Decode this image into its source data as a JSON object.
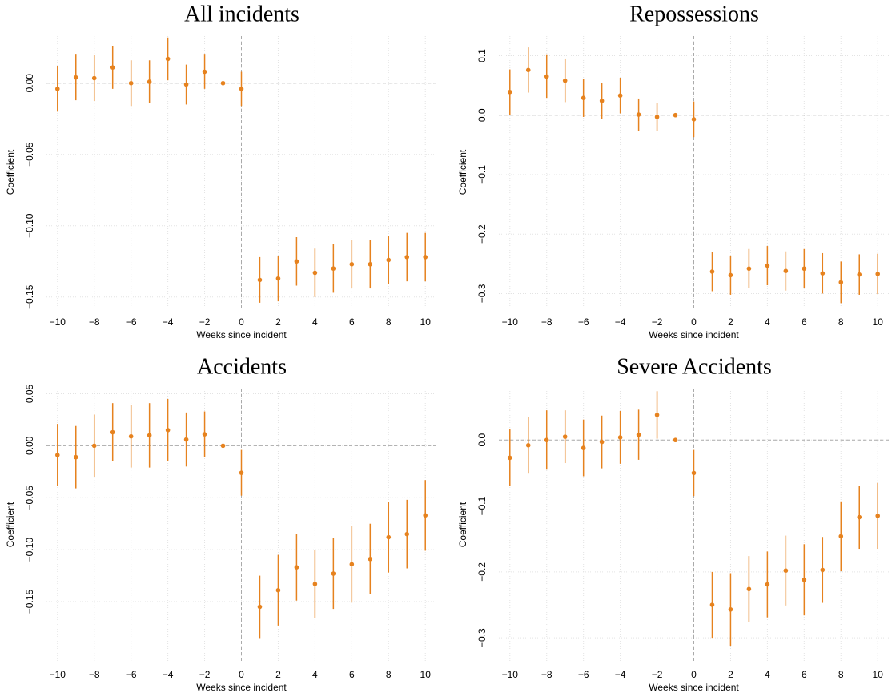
{
  "chart_data": [
    {
      "type": "errorbar",
      "title": "All incidents",
      "xlabel": "Weeks since incident",
      "ylabel": "Coefficient",
      "color": "#e6821e",
      "grid": true,
      "hline": 0,
      "vline": 0,
      "x": [
        -10,
        -9,
        -8,
        -7,
        -6,
        -5,
        -4,
        -3,
        -2,
        -1,
        0,
        1,
        2,
        3,
        4,
        5,
        6,
        7,
        8,
        9,
        10
      ],
      "values": [
        -0.004,
        0.004,
        0.0035,
        0.011,
        0.0,
        0.001,
        0.017,
        -0.001,
        0.008,
        0.0,
        -0.004,
        -0.138,
        -0.137,
        -0.125,
        -0.133,
        -0.13,
        -0.127,
        -0.127,
        -0.124,
        -0.122,
        -0.122
      ],
      "errors": [
        0.016,
        0.016,
        0.016,
        0.015,
        0.016,
        0.015,
        0.015,
        0.014,
        0.012,
        0.001,
        0.012,
        0.016,
        0.016,
        0.017,
        0.017,
        0.017,
        0.017,
        0.017,
        0.017,
        0.017,
        0.017
      ],
      "xlim": [
        -10.6,
        10.6
      ],
      "ylim": [
        -0.158,
        0.033
      ],
      "xticks": [
        {
          "value": -10,
          "label": "−10"
        },
        {
          "value": -8,
          "label": "−8"
        },
        {
          "value": -6,
          "label": "−6"
        },
        {
          "value": -4,
          "label": "−4"
        },
        {
          "value": -2,
          "label": "−2"
        },
        0,
        2,
        4,
        6,
        8,
        10
      ],
      "yticks": [
        {
          "value": 0,
          "label": "0.00"
        },
        {
          "value": -0.05,
          "label": "−0.05"
        },
        {
          "value": -0.1,
          "label": "−0.10"
        },
        {
          "value": -0.15,
          "label": "−0.15"
        }
      ]
    },
    {
      "type": "errorbar",
      "title": "Repossessions",
      "xlabel": "Weeks since incident",
      "ylabel": "Coefficient",
      "color": "#e6821e",
      "grid": true,
      "hline": 0,
      "vline": 0,
      "x": [
        -10,
        -9,
        -8,
        -7,
        -6,
        -5,
        -4,
        -3,
        -2,
        -1,
        0,
        1,
        2,
        3,
        4,
        5,
        6,
        7,
        8,
        9,
        10
      ],
      "values": [
        0.039,
        0.076,
        0.065,
        0.058,
        0.029,
        0.024,
        0.033,
        0.001,
        -0.003,
        0.0,
        -0.007,
        -0.263,
        -0.269,
        -0.258,
        -0.253,
        -0.262,
        -0.258,
        -0.266,
        -0.281,
        -0.268,
        -0.267
      ],
      "errors": [
        0.038,
        0.038,
        0.036,
        0.036,
        0.032,
        0.03,
        0.03,
        0.027,
        0.024,
        0.002,
        0.03,
        0.033,
        0.033,
        0.033,
        0.033,
        0.033,
        0.033,
        0.034,
        0.035,
        0.034,
        0.034
      ],
      "xlim": [
        -10.6,
        10.6
      ],
      "ylim": [
        -0.325,
        0.133
      ],
      "xticks": [
        {
          "value": -10,
          "label": "−10"
        },
        {
          "value": -8,
          "label": "−8"
        },
        {
          "value": -6,
          "label": "−6"
        },
        {
          "value": -4,
          "label": "−4"
        },
        {
          "value": -2,
          "label": "−2"
        },
        0,
        2,
        4,
        6,
        8,
        10
      ],
      "yticks": [
        0.1,
        {
          "value": 0,
          "label": "0.0"
        },
        {
          "value": -0.1,
          "label": "−0.1"
        },
        {
          "value": -0.2,
          "label": "−0.2"
        },
        {
          "value": -0.3,
          "label": "−0.3"
        }
      ]
    },
    {
      "type": "errorbar",
      "title": "Accidents",
      "xlabel": "Weeks since incident",
      "ylabel": "Coefficient",
      "color": "#e6821e",
      "grid": true,
      "hline": 0,
      "vline": 0,
      "x": [
        -10,
        -9,
        -8,
        -7,
        -6,
        -5,
        -4,
        -3,
        -2,
        -1,
        0,
        1,
        2,
        3,
        4,
        5,
        6,
        7,
        8,
        9,
        10
      ],
      "values": [
        -0.009,
        -0.011,
        0.0,
        0.013,
        0.009,
        0.01,
        0.015,
        0.006,
        0.011,
        0.0,
        -0.026,
        -0.155,
        -0.139,
        -0.117,
        -0.133,
        -0.123,
        -0.114,
        -0.109,
        -0.088,
        -0.085,
        -0.067
      ],
      "errors": [
        0.03,
        0.03,
        0.03,
        0.028,
        0.03,
        0.031,
        0.03,
        0.026,
        0.022,
        0.001,
        0.022,
        0.03,
        0.034,
        0.032,
        0.033,
        0.034,
        0.037,
        0.034,
        0.034,
        0.033,
        0.034
      ],
      "xlim": [
        -10.6,
        10.6
      ],
      "ylim": [
        -0.207,
        0.055
      ],
      "xticks": [
        {
          "value": -10,
          "label": "−10"
        },
        {
          "value": -8,
          "label": "−8"
        },
        {
          "value": -6,
          "label": "−6"
        },
        {
          "value": -4,
          "label": "−4"
        },
        {
          "value": -2,
          "label": "−2"
        },
        0,
        2,
        4,
        6,
        8,
        10
      ],
      "yticks": [
        0.05,
        {
          "value": 0,
          "label": "0.00"
        },
        {
          "value": -0.05,
          "label": "−0.05"
        },
        {
          "value": -0.1,
          "label": "−0.10"
        },
        {
          "value": -0.15,
          "label": "−0.15"
        }
      ]
    },
    {
      "type": "errorbar",
      "title": "Severe Accidents",
      "xlabel": "Weeks since incident",
      "ylabel": "Coefficient",
      "color": "#e6821e",
      "grid": true,
      "hline": 0,
      "vline": 0,
      "x": [
        -10,
        -9,
        -8,
        -7,
        -6,
        -5,
        -4,
        -3,
        -2,
        -1,
        0,
        1,
        2,
        3,
        4,
        5,
        6,
        7,
        8,
        9,
        10
      ],
      "values": [
        -0.027,
        -0.008,
        0.0,
        0.005,
        -0.012,
        -0.003,
        0.004,
        0.008,
        0.038,
        0.0,
        -0.05,
        -0.25,
        -0.257,
        -0.226,
        -0.219,
        -0.198,
        -0.212,
        -0.197,
        -0.146,
        -0.117,
        -0.115
      ],
      "errors": [
        0.043,
        0.043,
        0.045,
        0.04,
        0.043,
        0.04,
        0.04,
        0.038,
        0.036,
        0.002,
        0.035,
        0.05,
        0.055,
        0.05,
        0.05,
        0.053,
        0.054,
        0.05,
        0.053,
        0.048,
        0.05
      ],
      "xlim": [
        -10.6,
        10.6
      ],
      "ylim": [
        -0.335,
        0.078
      ],
      "xticks": [
        {
          "value": -10,
          "label": "−10"
        },
        {
          "value": -8,
          "label": "−8"
        },
        {
          "value": -6,
          "label": "−6"
        },
        {
          "value": -4,
          "label": "−4"
        },
        {
          "value": -2,
          "label": "−2"
        },
        0,
        2,
        4,
        6,
        8,
        10
      ],
      "yticks": [
        {
          "value": 0,
          "label": "0.0"
        },
        {
          "value": -0.1,
          "label": "−0.1"
        },
        {
          "value": -0.2,
          "label": "−0.2"
        },
        {
          "value": -0.3,
          "label": "−0.3"
        }
      ]
    }
  ]
}
